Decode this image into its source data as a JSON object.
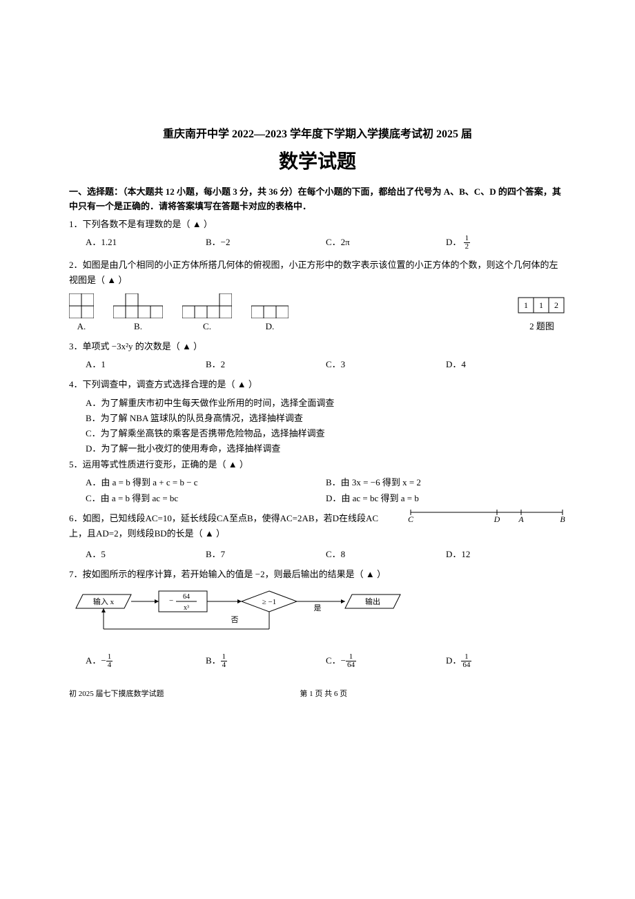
{
  "header": {
    "school_title": "重庆南开中学 2022—2023 学年度下学期入学摸底考试初 2025 届",
    "subject": "数学试题"
  },
  "section1": {
    "title": "一、选择题：（本大题共 12 小题，每小题 3 分，共 36 分）在每个小题的下面，都给出了代号为 A、B、C、D 的四个答案，其中只有一个是正确的．请将答案填写在答题卡对应的表格中．"
  },
  "q1": {
    "text": "1．下列各数不是有理数的是（ ▲ ）",
    "opts": {
      "a": "A．1.21",
      "b": "B．−2",
      "c": "C．2π",
      "d": "D．"
    },
    "d_frac": {
      "num": "1",
      "den": "2"
    }
  },
  "q2": {
    "text": "2．如图是由几个相同的小正方体所搭几何体的俯视图，小正方形中的数字表示该位置的小正方体的个数，则这个几何体的左视图是（ ▲ ）",
    "labels": {
      "a": "A.",
      "b": "B.",
      "c": "C.",
      "d": "D."
    },
    "right_caption": "2 题图",
    "top_numbers": [
      "1",
      "1",
      "2"
    ],
    "figures": {
      "stroke": "#000000",
      "cell": 18,
      "a": {
        "cols": 2,
        "rows": 2,
        "layout": [
          [
            1,
            1
          ],
          [
            1,
            1
          ]
        ]
      },
      "b": {
        "cols": 4,
        "rows": 2,
        "layout": [
          [
            0,
            1,
            0,
            0
          ],
          [
            1,
            1,
            1,
            1
          ]
        ]
      },
      "c": {
        "cols": 4,
        "rows": 2,
        "layout": [
          [
            0,
            0,
            0,
            1
          ],
          [
            1,
            1,
            1,
            1
          ]
        ]
      },
      "d": {
        "cols": 3,
        "rows": 2,
        "layout": [
          [
            0,
            0,
            0
          ],
          [
            1,
            1,
            1
          ]
        ]
      }
    }
  },
  "q3": {
    "text": "3．单项式 −3x²y 的次数是（ ▲ ）",
    "opts": {
      "a": "A．1",
      "b": "B．2",
      "c": "C．3",
      "d": "D．4"
    }
  },
  "q4": {
    "text": "4．下列调查中，调查方式选择合理的是（ ▲ ）",
    "a": "A．为了解重庆市初中生每天做作业所用的时间，选择全面调查",
    "b": "B．为了解 NBA 篮球队的队员身高情况，选择抽样调查",
    "c": "C．为了解乘坐高铁的乘客是否携带危险物品，选择抽样调查",
    "d": "D．为了解一批小夜灯的使用寿命，选择抽样调查"
  },
  "q5": {
    "text": "5．运用等式性质进行变形，正确的是（ ▲ ）",
    "a": "A．由 a = b 得到 a + c = b − c",
    "b": "B．由 3x = −6 得到 x = 2",
    "c": "C．由 a = b 得到 ac = bc",
    "d": "D．由 ac = bc 得到 a = b"
  },
  "q6": {
    "text": "6．如图，已知线段AC=10，延长线段CA至点B，使得AC=2AB，若D在线段AC上，且AD=2，则线段BD的长是（ ▲ ）",
    "opts": {
      "a": "A．5",
      "b": "B．7",
      "c": "C．8",
      "d": "D．12"
    },
    "figure": {
      "points": [
        "C",
        "D",
        "A",
        "B"
      ],
      "stroke": "#000000"
    }
  },
  "q7": {
    "text": "7．按如图所示的程序计算，若开始输入的值是 −2，则最后输出的结果是（ ▲ ）",
    "flow": {
      "input": "输入 x",
      "calc_num": "64",
      "calc_den": "x³",
      "cond": "≥ −1",
      "yes": "是",
      "no": "否",
      "output": "输出"
    },
    "opts": {
      "a_prefix": "A．−",
      "a_num": "1",
      "a_den": "4",
      "b_prefix": "B．",
      "b_num": "1",
      "b_den": "4",
      "c_prefix": "C．−",
      "c_num": "1",
      "c_den": "64",
      "d_prefix": "D．",
      "d_num": "1",
      "d_den": "64"
    }
  },
  "footer": {
    "left": "初 2025 届七下摸底数学试题",
    "center": "第 1 页 共 6 页"
  }
}
